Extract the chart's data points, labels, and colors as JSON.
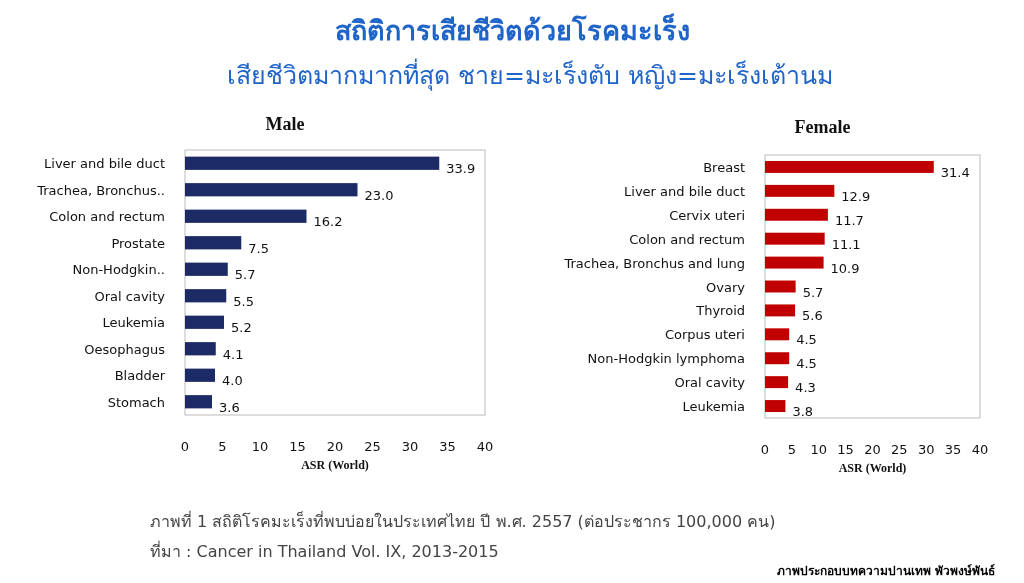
{
  "chart_data": [
    {
      "type": "other",
      "title": "สถิติการเสียชีวิตด้วยโรคมะเร็ง",
      "subtitle": "เสียชีวิตมากมากที่สุด ชาย=มะเร็งตับ  หญิง=มะเร็งเต้านม",
      "annotations": [
        "ภาพที่ 1 สถิติโรคมะเร็งที่พบบ่อยในประเทศไทย ปี พ.ศ. 2557 (ต่อประชากร 100,000 คน)",
        "ที่มา    : Cancer in Thailand Vol. IX, 2013-2015",
        "ภาพประกอบบทความปานเทพ พัวพงษ์พันธ์"
      ]
    },
    {
      "type": "bar",
      "orientation": "horizontal",
      "title": "Male",
      "xlabel": "ASR (World)",
      "xlim": [
        0,
        40
      ],
      "xticks": [
        0,
        5,
        10,
        15,
        20,
        25,
        30,
        35,
        40
      ],
      "categories": [
        "Liver and bile duct",
        "Trachea, Bronchus..",
        "Colon and rectum",
        "Prostate",
        "Non-Hodgkin..",
        "Oral cavity",
        "Leukemia",
        "Oesophagus",
        "Bladder",
        "Stomach"
      ],
      "values": [
        33.9,
        23.0,
        16.2,
        7.5,
        5.7,
        5.5,
        5.2,
        4.1,
        4.0,
        3.6
      ],
      "value_labels": [
        "33.9",
        "23.0",
        "16.2",
        "7.5",
        "5.7",
        "5.5",
        "5.2",
        "4.1",
        "4.0",
        "3.6"
      ],
      "color": "#1c2a66"
    },
    {
      "type": "bar",
      "orientation": "horizontal",
      "title": "Female",
      "xlabel": "ASR (World)",
      "xlim": [
        0,
        40
      ],
      "xticks": [
        0,
        5,
        10,
        15,
        20,
        25,
        30,
        35,
        40
      ],
      "categories": [
        "Breast",
        "Liver and bile duct",
        "Cervix uteri",
        "Colon and rectum",
        "Trachea, Bronchus and lung",
        "Ovary",
        "Thyroid",
        "Corpus uteri",
        "Non-Hodgkin lymphoma",
        "Oral cavity",
        "Leukemia"
      ],
      "values": [
        31.4,
        12.9,
        11.7,
        11.1,
        10.9,
        5.7,
        5.6,
        4.5,
        4.5,
        4.3,
        3.8
      ],
      "value_labels": [
        "31.4",
        "12.9",
        "11.7",
        "11.1",
        "10.9",
        "5.7",
        "5.6",
        "4.5",
        "4.5",
        "4.3",
        "3.8"
      ],
      "color": "#c00000"
    }
  ]
}
